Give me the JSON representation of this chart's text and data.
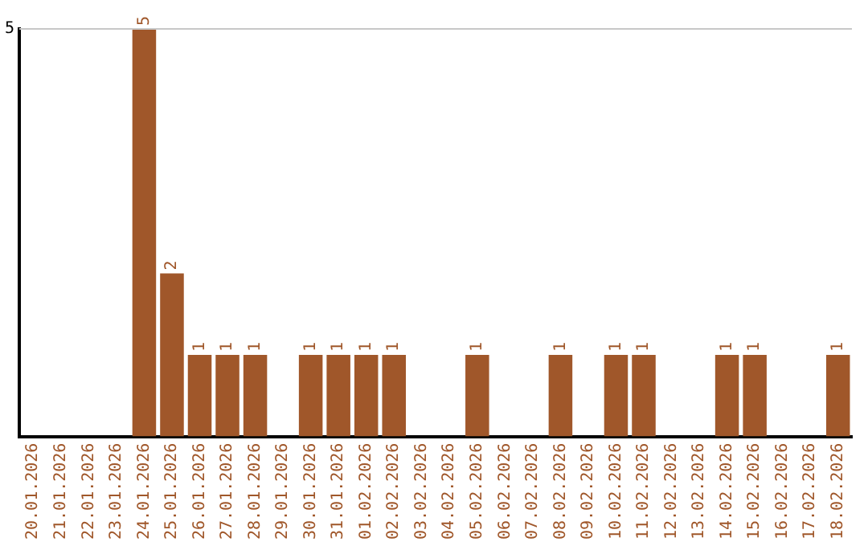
{
  "chart_data": {
    "type": "bar",
    "categories": [
      "20.01.2026",
      "21.01.2026",
      "22.01.2026",
      "23.01.2026",
      "24.01.2026",
      "25.01.2026",
      "26.01.2026",
      "27.01.2026",
      "28.01.2026",
      "29.01.2026",
      "30.01.2026",
      "31.01.2026",
      "01.02.2026",
      "02.02.2026",
      "03.02.2026",
      "04.02.2026",
      "05.02.2026",
      "06.02.2026",
      "07.02.2026",
      "08.02.2026",
      "09.02.2026",
      "10.02.2026",
      "11.02.2026",
      "12.02.2026",
      "13.02.2026",
      "14.02.2026",
      "15.02.2026",
      "16.02.2026",
      "17.02.2026",
      "18.02.2026"
    ],
    "values": [
      0,
      0,
      0,
      0,
      5,
      2,
      1,
      1,
      1,
      0,
      1,
      1,
      1,
      1,
      0,
      0,
      1,
      0,
      0,
      1,
      0,
      1,
      1,
      0,
      0,
      1,
      1,
      0,
      0,
      1
    ],
    "value_labels": [
      null,
      null,
      null,
      null,
      "5",
      "2",
      "1",
      "1",
      "1",
      null,
      "1",
      "1",
      "1",
      "1",
      null,
      null,
      "1",
      null,
      null,
      "1",
      null,
      "1",
      "1",
      null,
      null,
      "1",
      "1",
      null,
      null,
      "1"
    ],
    "color": "#a0572a",
    "ylim": [
      0,
      5
    ],
    "yticks": [
      5
    ],
    "ref_lines": [
      {
        "axis": "y",
        "value": 5,
        "color": "#c8c8c8"
      }
    ]
  }
}
